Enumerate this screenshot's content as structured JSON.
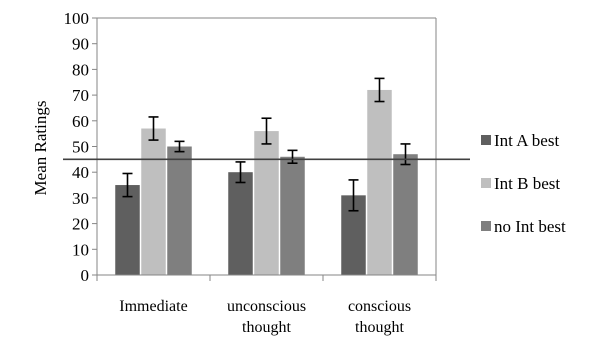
{
  "chart_data": {
    "type": "bar",
    "title": "",
    "xlabel": "",
    "ylabel": "Mean Ratings",
    "ylim": [
      0,
      100
    ],
    "yticks": [
      0,
      10,
      20,
      30,
      40,
      50,
      60,
      70,
      80,
      90,
      100
    ],
    "categories": [
      [
        "Immediate"
      ],
      [
        "unconscious",
        "thought"
      ],
      [
        "conscious",
        "thought"
      ]
    ],
    "series": [
      {
        "name": "Int A best",
        "color": "#5f5f5f",
        "values": [
          35,
          40,
          31
        ],
        "errors": [
          4.5,
          4,
          6
        ]
      },
      {
        "name": "Int B best",
        "color": "#bfbfbf",
        "values": [
          57,
          56,
          72
        ],
        "errors": [
          4.5,
          5,
          4.5
        ]
      },
      {
        "name": "no Int best",
        "color": "#7f7f7f",
        "values": [
          50,
          46,
          47
        ],
        "errors": [
          2,
          2.5,
          4
        ]
      }
    ],
    "reference_line": {
      "value": 45
    },
    "grid": false,
    "legend": "right"
  }
}
